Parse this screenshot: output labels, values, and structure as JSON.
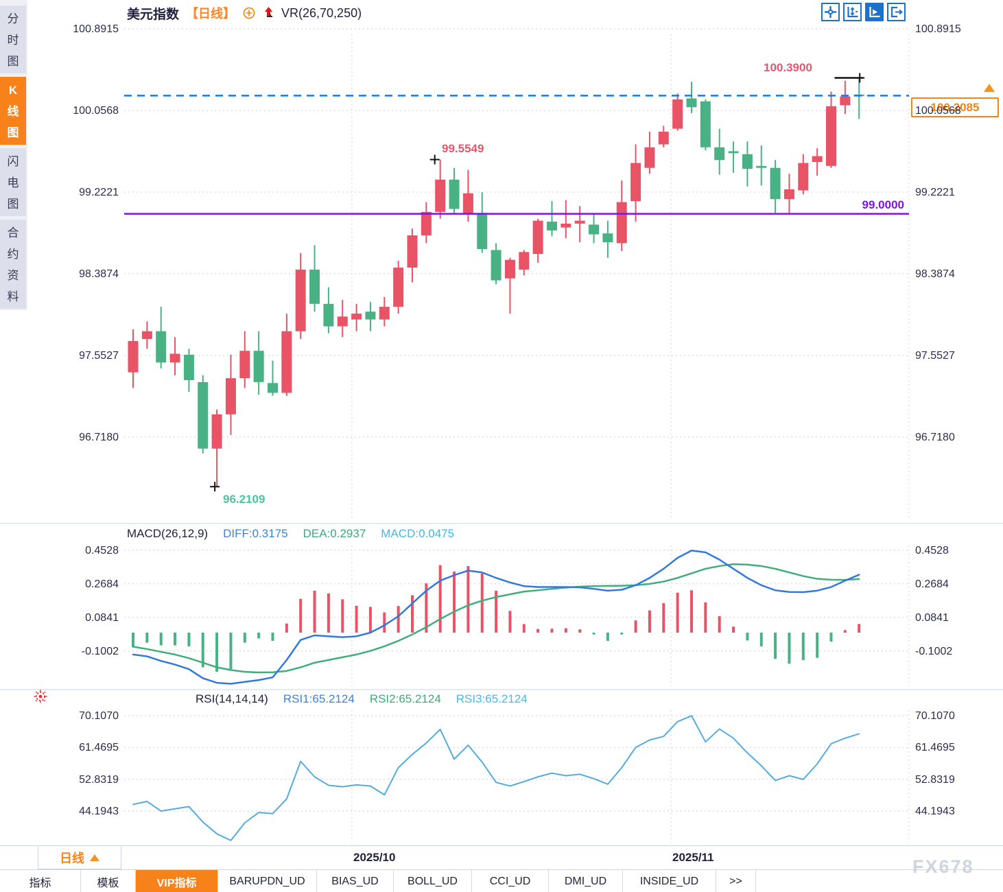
{
  "sidebar": {
    "items": [
      {
        "label": "分时图",
        "active": false
      },
      {
        "label": "K线图",
        "active": true
      },
      {
        "label": "闪电图",
        "active": false
      },
      {
        "label": "合约资料",
        "active": false
      }
    ]
  },
  "header": {
    "symbol": "美元指数",
    "period": "【日线】",
    "overlay": "VR(26,70,250)"
  },
  "toolbar": {
    "buttons": [
      {
        "name": "crosshair-move-icon",
        "active": false
      },
      {
        "name": "axis-range-icon",
        "active": false
      },
      {
        "name": "play-scale-icon",
        "active": true
      },
      {
        "name": "exit-right-icon",
        "active": false
      }
    ]
  },
  "main_chart": {
    "y_axis": [
      "100.8915",
      "100.0568",
      "99.2221",
      "98.3874",
      "97.5527",
      "96.7180"
    ],
    "annotations": {
      "high": "100.3900",
      "peak": "99.5549",
      "low": "96.2109",
      "hline": "99.0000",
      "last": "100.2085"
    }
  },
  "macd": {
    "legend": {
      "title": "MACD(26,12,9)",
      "diff": "DIFF:0.3175",
      "dea": "DEA:0.2937",
      "macd": "MACD:0.0475"
    },
    "y_axis": [
      "0.4528",
      "0.2684",
      "0.0841",
      "-0.1002"
    ]
  },
  "rsi": {
    "legend": {
      "title": "RSI(14,14,14)",
      "rsi1": "RSI1:65.2124",
      "rsi2": "RSI2:65.2124",
      "rsi3": "RSI3:65.2124"
    },
    "y_axis": [
      "70.1070",
      "61.4695",
      "52.8319",
      "44.1943"
    ]
  },
  "x_axis": {
    "labels": [
      {
        "text": "2025/10",
        "x": 513
      },
      {
        "text": "2025/11",
        "x": 978
      }
    ]
  },
  "footer": {
    "timeframe": "日线",
    "tabs": [
      "指标",
      "模板",
      "VIP指标",
      "BARUPDN_UD",
      "BIAS_UD",
      "BOLL_UD",
      "CCI_UD",
      "DMI_UD",
      "INSIDE_UD",
      ">>"
    ],
    "active_tab_index": 2
  },
  "watermark": "FX678",
  "colors": {
    "up": "#e95366",
    "down": "#48b285",
    "diff_line": "#3179dd",
    "dea_line": "#3fae7a",
    "rsi_line": "#54abdf",
    "dashed_last_price": "#1779e6",
    "support_line": "#7d13e2",
    "accent_orange": "#f8821a",
    "annotation_red": "#e8566e",
    "annotation_green": "#4cc39a",
    "grid": "#dedede",
    "separator": "#c9d6e4",
    "marker_black": "#111111"
  },
  "chart_data": {
    "type": "candlestick",
    "title": "美元指数 日线",
    "y_range": [
      96.2109,
      100.8915
    ],
    "levels": {
      "support": 99.0,
      "last_price": 100.2085,
      "marked_high": 100.39,
      "marked_peak": 99.5549,
      "marked_low": 96.2109
    },
    "month_ticks": [
      "2025/10",
      "2025/11"
    ],
    "candles_ohlc": [
      [
        97.38,
        97.82,
        97.22,
        97.7
      ],
      [
        97.72,
        97.9,
        97.62,
        97.8
      ],
      [
        97.8,
        98.05,
        97.42,
        97.48
      ],
      [
        97.48,
        97.74,
        97.35,
        97.57
      ],
      [
        97.56,
        97.62,
        97.18,
        97.3
      ],
      [
        97.28,
        97.35,
        96.55,
        96.6
      ],
      [
        96.6,
        97.0,
        96.2109,
        96.95
      ],
      [
        96.95,
        97.56,
        96.74,
        97.32
      ],
      [
        97.32,
        97.8,
        97.22,
        97.6
      ],
      [
        97.6,
        97.8,
        97.15,
        97.28
      ],
      [
        97.27,
        97.5,
        97.14,
        97.17
      ],
      [
        97.17,
        97.98,
        97.14,
        97.8
      ],
      [
        97.8,
        98.6,
        97.72,
        98.43
      ],
      [
        98.43,
        98.68,
        98.0,
        98.08
      ],
      [
        98.08,
        98.25,
        97.78,
        97.85
      ],
      [
        97.85,
        98.12,
        97.74,
        97.95
      ],
      [
        97.92,
        98.08,
        97.8,
        97.98
      ],
      [
        98.0,
        98.1,
        97.8,
        97.92
      ],
      [
        97.92,
        98.15,
        97.85,
        98.05
      ],
      [
        98.05,
        98.52,
        97.98,
        98.45
      ],
      [
        98.45,
        98.85,
        98.3,
        98.78
      ],
      [
        98.78,
        99.12,
        98.7,
        99.02
      ],
      [
        99.02,
        99.5549,
        98.95,
        99.35
      ],
      [
        99.35,
        99.47,
        99.0,
        99.05
      ],
      [
        99.0,
        99.45,
        98.92,
        99.21
      ],
      [
        99.01,
        99.22,
        98.6,
        98.64
      ],
      [
        98.63,
        98.7,
        98.28,
        98.32
      ],
      [
        98.34,
        98.55,
        97.98,
        98.53
      ],
      [
        98.43,
        98.63,
        98.37,
        98.61
      ],
      [
        98.59,
        98.95,
        98.5,
        98.93
      ],
      [
        98.92,
        99.13,
        98.77,
        98.83
      ],
      [
        98.86,
        99.14,
        98.75,
        98.9
      ],
      [
        98.9,
        99.08,
        98.71,
        98.93
      ],
      [
        98.89,
        99.0,
        98.7,
        98.79
      ],
      [
        98.8,
        98.93,
        98.55,
        98.71
      ],
      [
        98.7,
        99.34,
        98.62,
        99.12
      ],
      [
        99.13,
        99.71,
        98.92,
        99.52
      ],
      [
        99.47,
        99.84,
        99.41,
        99.68
      ],
      [
        99.71,
        99.9,
        99.68,
        99.84
      ],
      [
        99.87,
        100.23,
        99.85,
        100.17
      ],
      [
        100.18,
        100.35,
        100.03,
        100.09
      ],
      [
        100.15,
        100.17,
        99.65,
        99.68
      ],
      [
        99.68,
        99.87,
        99.4,
        99.55
      ],
      [
        99.64,
        99.74,
        99.42,
        99.62
      ],
      [
        99.61,
        99.74,
        99.28,
        99.46
      ],
      [
        99.49,
        99.7,
        99.29,
        99.47
      ],
      [
        99.47,
        99.55,
        99.01,
        99.15
      ],
      [
        99.15,
        99.41,
        99.0,
        99.25
      ],
      [
        99.24,
        99.61,
        99.2,
        99.52
      ],
      [
        99.53,
        99.67,
        99.39,
        99.59
      ],
      [
        99.49,
        100.25,
        99.47,
        100.1
      ],
      [
        100.11,
        100.36,
        100.02,
        100.2
      ],
      [
        100.22,
        100.39,
        99.97,
        100.2085
      ]
    ],
    "macd": {
      "params": [
        26,
        12,
        9
      ],
      "diff": [
        -0.12,
        -0.13,
        -0.155,
        -0.175,
        -0.2,
        -0.25,
        -0.275,
        -0.28,
        -0.27,
        -0.26,
        -0.245,
        -0.15,
        -0.04,
        -0.015,
        -0.02,
        -0.025,
        -0.02,
        0.0,
        0.04,
        0.09,
        0.16,
        0.23,
        0.285,
        0.315,
        0.34,
        0.33,
        0.3,
        0.275,
        0.255,
        0.25,
        0.25,
        0.25,
        0.248,
        0.24,
        0.23,
        0.235,
        0.26,
        0.3,
        0.35,
        0.41,
        0.45,
        0.44,
        0.4,
        0.35,
        0.3,
        0.26,
        0.232,
        0.223,
        0.222,
        0.23,
        0.25,
        0.285,
        0.3175
      ],
      "dea": [
        -0.077,
        -0.09,
        -0.105,
        -0.12,
        -0.14,
        -0.165,
        -0.19,
        -0.205,
        -0.215,
        -0.218,
        -0.217,
        -0.21,
        -0.19,
        -0.165,
        -0.15,
        -0.135,
        -0.12,
        -0.1,
        -0.075,
        -0.045,
        -0.01,
        0.03,
        0.075,
        0.115,
        0.15,
        0.175,
        0.195,
        0.21,
        0.225,
        0.232,
        0.24,
        0.247,
        0.252,
        0.255,
        0.256,
        0.257,
        0.26,
        0.267,
        0.28,
        0.3,
        0.325,
        0.35,
        0.365,
        0.375,
        0.373,
        0.365,
        0.35,
        0.33,
        0.31,
        0.295,
        0.29,
        0.289,
        0.2937
      ],
      "hist": [
        -0.08,
        -0.055,
        -0.07,
        -0.07,
        -0.075,
        -0.19,
        -0.215,
        -0.2,
        -0.055,
        -0.032,
        -0.045,
        0.05,
        0.185,
        0.23,
        0.215,
        0.183,
        0.147,
        0.141,
        0.111,
        0.146,
        0.205,
        0.27,
        0.37,
        0.335,
        0.365,
        0.324,
        0.23,
        0.119,
        0.047,
        0.02,
        0.022,
        0.024,
        0.018,
        -0.01,
        -0.045,
        -0.01,
        0.067,
        0.122,
        0.162,
        0.219,
        0.232,
        0.166,
        0.09,
        0.033,
        -0.043,
        -0.075,
        -0.144,
        -0.17,
        -0.151,
        -0.138,
        -0.049,
        0.014,
        0.0475
      ],
      "ylim": [
        -0.1002,
        0.4528
      ]
    },
    "rsi": {
      "params": [
        14,
        14,
        14
      ],
      "values": [
        46.0,
        46.8,
        44.2,
        44.8,
        45.4,
        41.2,
        38.0,
        36.2,
        41.0,
        43.8,
        43.5,
        47.5,
        57.7,
        53.5,
        51.2,
        50.8,
        51.3,
        51.0,
        48.6,
        56.0,
        59.6,
        62.7,
        66.4,
        58.3,
        62.1,
        57.5,
        52.0,
        51.0,
        52.2,
        53.5,
        54.5,
        53.8,
        54.2,
        53.0,
        51.5,
        56.0,
        61.5,
        63.5,
        64.5,
        68.5,
        70.1,
        63.0,
        66.5,
        64.0,
        60.0,
        56.5,
        52.5,
        53.8,
        52.8,
        57.0,
        62.5,
        64.0,
        65.2
      ],
      "ylim": [
        44.1943,
        70.107
      ]
    }
  }
}
